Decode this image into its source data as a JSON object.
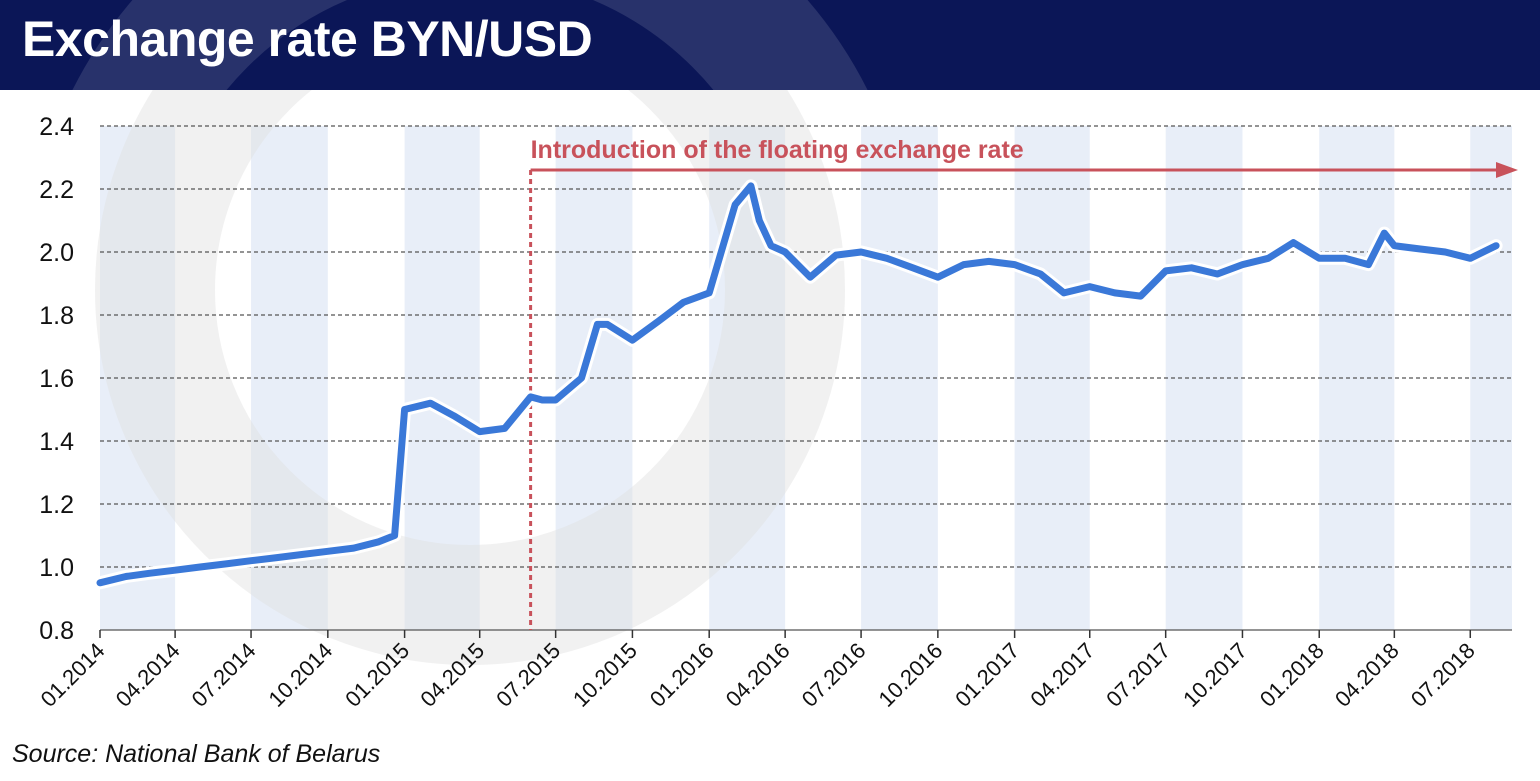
{
  "header": {
    "title": "Exchange rate BYN/USD"
  },
  "source": "Source: National Bank of Belarus",
  "colors": {
    "header_bg": "#0b1657",
    "line": "#3a78d8",
    "annotation": "#c8525b",
    "band": "#e8eef8",
    "grid": "#555555"
  },
  "chart_data": {
    "type": "line",
    "title": "Exchange rate BYN/USD",
    "xlabel": "",
    "ylabel": "",
    "ylim": [
      0.8,
      2.4
    ],
    "y_ticks": [
      "0.8",
      "1.0",
      "1.2",
      "1.4",
      "1.6",
      "1.8",
      "2.0",
      "2.2",
      "2.4"
    ],
    "x_ticks": [
      "01.2014",
      "04.2014",
      "07.2014",
      "10.2014",
      "01.2015",
      "04.2015",
      "07.2015",
      "10.2015",
      "01.2016",
      "04.2016",
      "07.2016",
      "10.2016",
      "01.2017",
      "04.2017",
      "07.2017",
      "10.2017",
      "01.2018",
      "04.2018",
      "07.2018"
    ],
    "grid": "horizontal dashed",
    "annotation": {
      "text": "Introduction of the floating exchange rate",
      "date": "2015-06"
    },
    "series": [
      {
        "x": [
          "2014-01",
          "2014-02",
          "2014-03",
          "2014-04",
          "2014-05",
          "2014-06",
          "2014-07",
          "2014-08",
          "2014-09",
          "2014-10",
          "2014-11",
          "2014-12",
          "2014-12-20",
          "2015-01",
          "2015-02",
          "2015-03",
          "2015-04",
          "2015-05",
          "2015-06",
          "2015-06-15",
          "2015-07",
          "2015-08",
          "2015-08-20",
          "2015-09",
          "2015-10",
          "2015-11",
          "2015-12",
          "2016-01",
          "2016-02",
          "2016-02-20",
          "2016-03",
          "2016-03-15",
          "2016-04",
          "2016-05",
          "2016-06",
          "2016-07",
          "2016-08",
          "2016-09",
          "2016-10",
          "2016-11",
          "2016-12",
          "2017-01",
          "2017-02",
          "2017-03",
          "2017-04",
          "2017-05",
          "2017-06",
          "2017-07",
          "2017-08",
          "2017-09",
          "2017-10",
          "2017-11",
          "2017-12",
          "2018-01",
          "2018-02",
          "2018-03",
          "2018-03-20",
          "2018-04",
          "2018-05",
          "2018-06",
          "2018-07",
          "2018-08"
        ],
        "values": [
          0.95,
          0.97,
          0.98,
          0.99,
          1.0,
          1.01,
          1.02,
          1.03,
          1.04,
          1.05,
          1.06,
          1.08,
          1.1,
          1.5,
          1.52,
          1.48,
          1.43,
          1.44,
          1.54,
          1.53,
          1.53,
          1.6,
          1.77,
          1.77,
          1.72,
          1.78,
          1.84,
          1.87,
          2.15,
          2.21,
          2.1,
          2.02,
          2.0,
          1.92,
          1.99,
          2.0,
          1.98,
          1.95,
          1.92,
          1.96,
          1.97,
          1.96,
          1.93,
          1.87,
          1.89,
          1.87,
          1.86,
          1.94,
          1.95,
          1.93,
          1.96,
          1.98,
          2.03,
          1.98,
          1.98,
          1.96,
          2.06,
          2.02,
          2.01,
          2.0,
          1.98,
          2.02
        ]
      }
    ]
  }
}
